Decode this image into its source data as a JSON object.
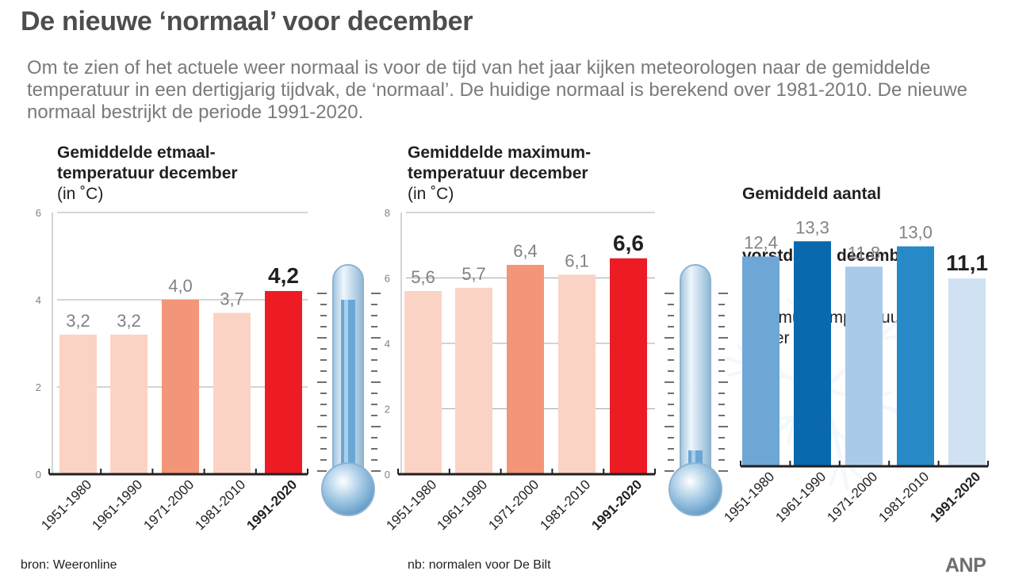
{
  "title": "De nieuwe ‘normaal’ voor december",
  "intro": "Om te zien of het actuele weer normaal is voor de tijd van het jaar kijken meteorologen naar de gemiddelde temperatuur in een dertigjarig tijdvak, de ‘normaal’. De huidige normaal is berekend over 1981-2010. De nieuwe normaal bestrijkt de periode 1991-2020.",
  "panels": [
    {
      "title_line1": "Gemiddelde etmaal-",
      "title_line2": "temperatuur december",
      "subtitle": "(in ˚C)"
    },
    {
      "title_line1": "Gemiddelde maximum-",
      "title_line2": "temperatuur december",
      "subtitle": "(in ˚C)"
    },
    {
      "title_line1": "Gemiddeld aantal",
      "title_line2": "vorstdagen december",
      "subtitle": "(minimumtemperatuur\n onder nul)"
    }
  ],
  "footer": {
    "source": "bron:  Weeronline",
    "note": "nb: normalen voor De Bilt",
    "logo": "ANP"
  },
  "colors": {
    "light": "#fbd3c4",
    "mid": "#f39578",
    "highlight": "#ed1c24",
    "frost_1": "#6ea6d6",
    "frost_2": "#0a69ae",
    "frost_3": "#a9cbe9",
    "frost_4": "#2889c7",
    "frost_5": "#cfe1f3"
  },
  "chart_data": [
    {
      "type": "bar",
      "title": "Gemiddelde etmaal- temperatuur december",
      "ylabel": "(in ˚C)",
      "categories": [
        "1951-1980",
        "1961-1990",
        "1971-2000",
        "1981-2010",
        "1991-2020"
      ],
      "values": [
        3.2,
        3.2,
        4.0,
        3.7,
        4.2
      ],
      "value_labels": [
        "3,2",
        "3,2",
        "4,0",
        "3,7",
        "4,2"
      ],
      "ylim": [
        0,
        6
      ],
      "yticks": [
        0,
        2,
        4,
        6
      ],
      "grid": true,
      "highlight_index": 4
    },
    {
      "type": "bar",
      "title": "Gemiddelde maximum- temperatuur december",
      "ylabel": "(in ˚C)",
      "categories": [
        "1951-1980",
        "1961-1990",
        "1971-2000",
        "1981-2010",
        "1991-2020"
      ],
      "values": [
        5.6,
        5.7,
        6.4,
        6.1,
        6.6
      ],
      "value_labels": [
        "5,6",
        "5,7",
        "6,4",
        "6,1",
        "6,6"
      ],
      "ylim": [
        0,
        8
      ],
      "yticks": [
        0,
        2,
        4,
        6,
        8
      ],
      "grid": true,
      "highlight_index": 4
    },
    {
      "type": "bar",
      "title": "Gemiddeld aantal vorstdagen december",
      "ylabel": "(minimumtemperatuur onder nul)",
      "categories": [
        "1951-1980",
        "1961-1990",
        "1971-2000",
        "1981-2010",
        "1991-2020"
      ],
      "values": [
        12.4,
        13.3,
        11.8,
        13.0,
        11.1
      ],
      "value_labels": [
        "12,4",
        "13,3",
        "11,8",
        "13,0",
        "11,1"
      ],
      "ylim": [
        0,
        15
      ],
      "grid": false,
      "highlight_index": 4
    }
  ]
}
